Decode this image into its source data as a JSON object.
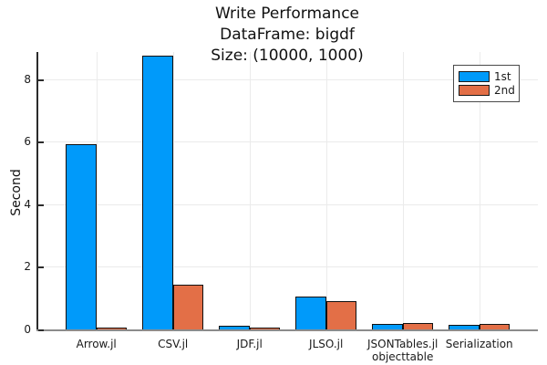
{
  "title": {
    "line1": "Write Performance",
    "line2": "DataFrame: bigdf",
    "line3": "Size: (10000, 1000)"
  },
  "ylabel": "Second",
  "legend": {
    "items": [
      {
        "label": "1st",
        "color": "#009AFA"
      },
      {
        "label": "2nd",
        "color": "#E36F47"
      }
    ]
  },
  "chart_data": {
    "type": "bar",
    "title": "Write Performance\nDataFrame: bigdf\nSize: (10000, 1000)",
    "xlabel": "",
    "ylabel": "Second",
    "categories": [
      "Arrow.jl",
      "CSV.jl",
      "JDF.jl",
      "JLSO.jl",
      "JSONTables.jl\nobjecttable",
      "Serialization"
    ],
    "series": [
      {
        "name": "1st",
        "color": "#009AFA",
        "values": [
          5.95,
          8.77,
          0.15,
          1.07,
          0.21,
          0.18
        ]
      },
      {
        "name": "2nd",
        "color": "#E36F47",
        "values": [
          0.1,
          1.45,
          0.1,
          0.93,
          0.22,
          0.2
        ]
      }
    ],
    "bar_edge_color": "#111111",
    "ylim": [
      0,
      8.9
    ],
    "yticks": [
      0,
      2,
      4,
      6,
      8
    ],
    "grid": true,
    "legend_position": "top-right"
  }
}
